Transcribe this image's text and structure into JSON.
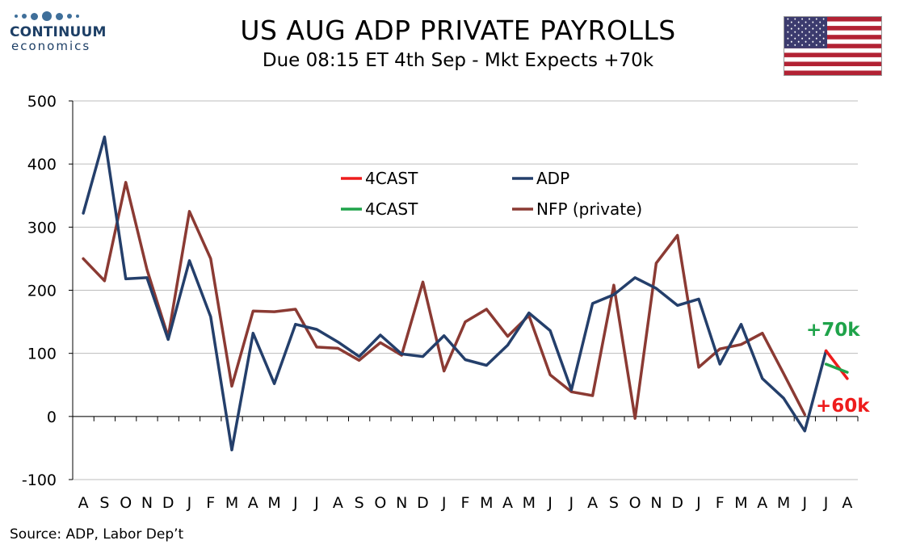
{
  "header": {
    "logo_line1": "CONTINUUM",
    "logo_line2": "economics",
    "title": "US AUG ADP PRIVATE PAYROLLS",
    "subtitle": "Due 08:15 ET 4th Sep - Mkt Expects +70k"
  },
  "footer": {
    "source": "Source: ADP, Labor Dep’t"
  },
  "colors": {
    "adp": "#243f6b",
    "nfp": "#8b3a33",
    "fcst_red": "#ee1c1c",
    "fcst_green": "#1fa34a",
    "grid": "#bdbdbd",
    "logo": "#3f6f9a"
  },
  "chart_data": {
    "type": "line",
    "categories": [
      "A",
      "S",
      "O",
      "N",
      "D",
      "J",
      "F",
      "M",
      "A",
      "M",
      "J",
      "J",
      "A",
      "S",
      "O",
      "N",
      "D",
      "J",
      "F",
      "M",
      "A",
      "M",
      "J",
      "J",
      "A",
      "S",
      "O",
      "N",
      "D",
      "J",
      "F",
      "M",
      "A",
      "M",
      "J",
      "J",
      "A"
    ],
    "ylim": [
      -100,
      500
    ],
    "yticks": [
      -100,
      0,
      100,
      200,
      300,
      400,
      500
    ],
    "grid": true,
    "legend_position": "upper-center",
    "series": [
      {
        "name": "4CAST",
        "color": "#ee1c1c",
        "values": [
          null,
          null,
          null,
          null,
          null,
          null,
          null,
          null,
          null,
          null,
          null,
          null,
          null,
          null,
          null,
          null,
          null,
          null,
          null,
          null,
          null,
          null,
          null,
          null,
          null,
          null,
          null,
          null,
          null,
          null,
          null,
          null,
          null,
          null,
          null,
          104,
          60
        ]
      },
      {
        "name": "ADP",
        "color": "#243f6b",
        "values": [
          322,
          443,
          218,
          220,
          122,
          247,
          158,
          -53,
          132,
          52,
          146,
          138,
          118,
          95,
          129,
          99,
          95,
          128,
          90,
          81,
          113,
          164,
          136,
          42,
          179,
          193,
          220,
          203,
          176,
          186,
          83,
          146,
          60,
          29,
          -23,
          104,
          null
        ]
      },
      {
        "name": "4CAST",
        "color": "#1fa34a",
        "values": [
          null,
          null,
          null,
          null,
          null,
          null,
          null,
          null,
          null,
          null,
          null,
          null,
          null,
          null,
          null,
          null,
          null,
          null,
          null,
          null,
          null,
          null,
          null,
          null,
          null,
          null,
          null,
          null,
          null,
          null,
          null,
          null,
          null,
          null,
          null,
          83,
          70
        ]
      },
      {
        "name": "NFP (private)",
        "color": "#8b3a33",
        "values": [
          250,
          215,
          371,
          233,
          126,
          325,
          250,
          48,
          167,
          166,
          170,
          110,
          108,
          89,
          117,
          97,
          213,
          72,
          150,
          170,
          127,
          160,
          66,
          39,
          33,
          208,
          -3,
          243,
          287,
          78,
          107,
          114,
          132,
          68,
          3,
          null,
          null
        ]
      }
    ],
    "annotations": [
      {
        "text": "+70k",
        "color": "#1fa34a"
      },
      {
        "text": "+60k",
        "color": "#ee1c1c"
      }
    ]
  }
}
